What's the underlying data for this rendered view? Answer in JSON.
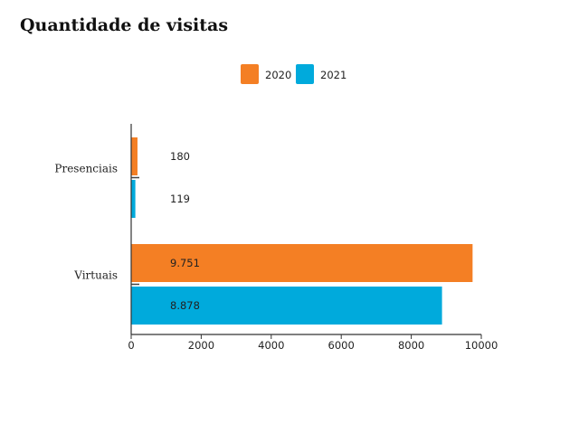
{
  "chart_data": {
    "type": "bar",
    "orientation": "horizontal",
    "title": "Quantidade de visitas",
    "categories": [
      "Presenciais",
      "Virtuais"
    ],
    "series": [
      {
        "name": "2020",
        "color": "#f47f24",
        "values": [
          180,
          9751
        ],
        "labels": [
          "180",
          "9.751"
        ]
      },
      {
        "name": "2021",
        "color": "#00aadc",
        "values": [
          119,
          8878
        ],
        "labels": [
          "119",
          "8.878"
        ]
      }
    ],
    "xlim": [
      0,
      10000
    ],
    "xticks": [
      "0",
      "2000",
      "4000",
      "6000",
      "8000",
      "10000"
    ],
    "grid": false,
    "legend": "top-center"
  }
}
